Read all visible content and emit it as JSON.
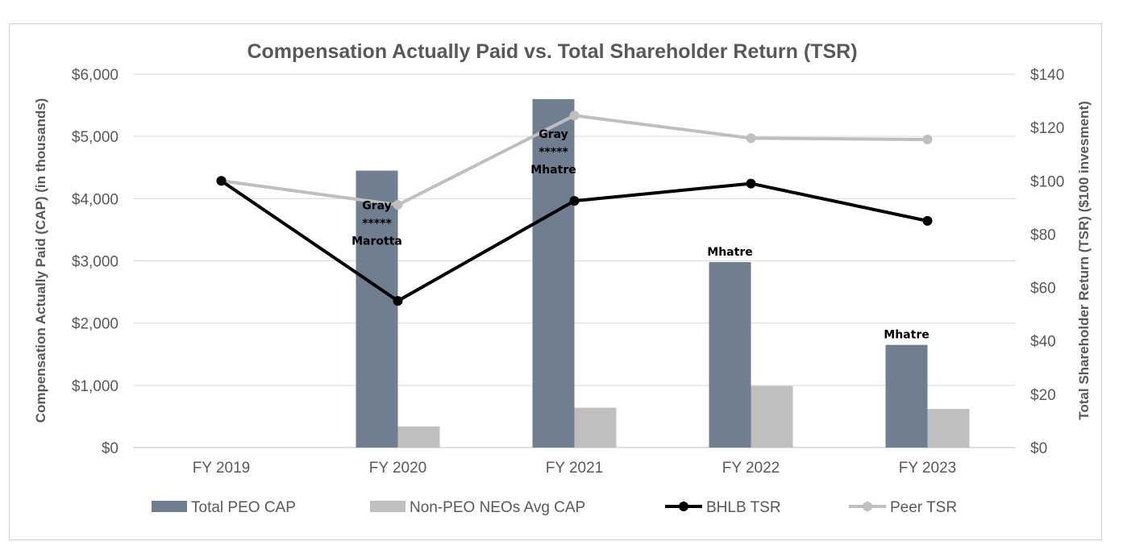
{
  "chart_data": {
    "type": "bar",
    "title": "Compensation Actually Paid vs. Total Shareholder Return (TSR)",
    "categories": [
      "FY 2019",
      "FY 2020",
      "FY 2021",
      "FY 2022",
      "FY 2023"
    ],
    "ylabel_left": "Compensation Actually Paid (CAP) (in thousands)",
    "ylabel_right": "Total Shareholder Return (TSR) ($100  invesment)",
    "ylim_left": [
      0,
      6000
    ],
    "ylim_right": [
      0,
      140
    ],
    "left_ticks": [
      "$0",
      "$1,000",
      "$2,000",
      "$3,000",
      "$4,000",
      "$5,000",
      "$6,000"
    ],
    "right_ticks": [
      "$0",
      "$20",
      "$40",
      "$60",
      "$80",
      "$100",
      "$120",
      "$140"
    ],
    "grid": true,
    "legend_position": "bottom",
    "bar_series": [
      {
        "name": "Total PEO CAP",
        "values": [
          null,
          4450,
          5600,
          2980,
          1650
        ],
        "color": "#6f7f90",
        "axis": "left"
      },
      {
        "name": "Non-PEO NEOs Avg CAP",
        "values": [
          null,
          340,
          640,
          990,
          620
        ],
        "color": "#bfbfbf",
        "axis": "left"
      }
    ],
    "line_series": [
      {
        "name": "BHLB TSR",
        "values": [
          100,
          55,
          92.5,
          99,
          85
        ],
        "color": "#000000",
        "axis": "right"
      },
      {
        "name": "Peer TSR",
        "values": [
          100,
          91,
          124.5,
          116,
          115.5
        ],
        "color": "#bfbfbf",
        "axis": "right"
      }
    ],
    "annotations": [
      {
        "category_index": 1,
        "lines": [
          "Gray",
          "*****",
          "Marotta"
        ]
      },
      {
        "category_index": 2,
        "lines": [
          "Gray",
          "*****",
          "Mhatre"
        ]
      },
      {
        "category_index": 3,
        "lines": [
          "Mhatre"
        ]
      },
      {
        "category_index": 4,
        "lines": [
          "Mhatre"
        ]
      }
    ]
  }
}
